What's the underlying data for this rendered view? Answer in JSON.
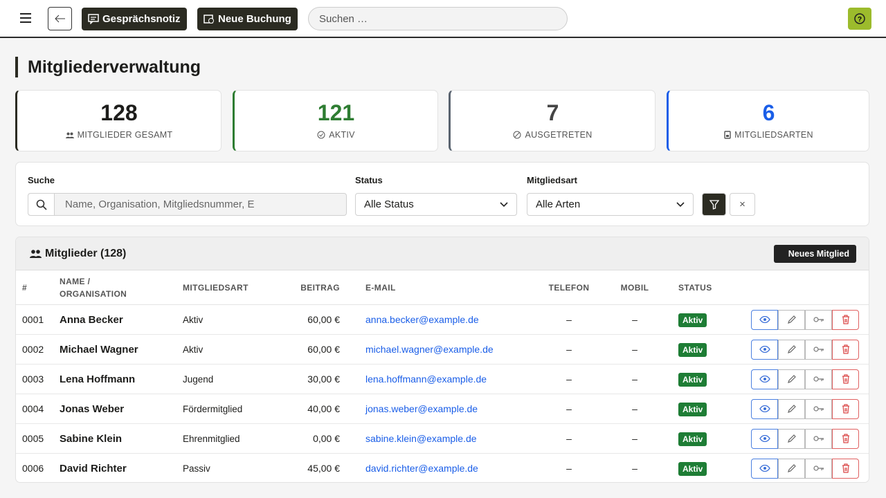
{
  "toolbar": {
    "note_button": "Gesprächsnotiz",
    "booking_button": "Neue Buchung",
    "search_placeholder": "Suchen …"
  },
  "header": {
    "title": "Mitgliederverwaltung"
  },
  "stats": [
    {
      "value": 128,
      "label": "MITGLIEDER GESAMT"
    },
    {
      "value": 121,
      "label": "AKTIV"
    },
    {
      "value": 7,
      "label": "AUSGETRETEN"
    },
    {
      "value": 6,
      "label": "MITGLIEDSARTEN"
    }
  ],
  "filters": {
    "search_label": "Suche",
    "search_placeholder": "Name, Organisation, Mitgliedsnummer, E",
    "status_label": "Status",
    "status_value": "Alle Status",
    "type_label": "Mitgliedsart",
    "type_value": "Alle Arten",
    "reset": "×"
  },
  "table": {
    "title": "Mitglieder (128)",
    "new_button": "Neues Mitglied",
    "columns": [
      "#",
      "NAME / ORGANISATION",
      "MITGLIEDSART",
      "BEITRAG",
      "E-MAIL",
      "TELEFON",
      "MOBIL",
      "STATUS"
    ],
    "rows": [
      [
        "0001",
        "Anna Becker",
        "Aktiv",
        "60,00 €",
        "anna.becker@example.de",
        "–",
        "–",
        "Aktiv"
      ],
      [
        "0002",
        "Michael Wagner",
        "Aktiv",
        "60,00 €",
        "michael.wagner@example.de",
        "–",
        "–",
        "Aktiv"
      ],
      [
        "0003",
        "Lena Hoffmann",
        "Jugend",
        "30,00 €",
        "lena.hoffmann@example.de",
        "–",
        "–",
        "Aktiv"
      ],
      [
        "0004",
        "Jonas Weber",
        "Fördermitglied",
        "40,00 €",
        "jonas.weber@example.de",
        "–",
        "–",
        "Aktiv"
      ],
      [
        "0005",
        "Sabine Klein",
        "Ehrenmitglied",
        "0,00 €",
        "sabine.klein@example.de",
        "–",
        "–",
        "Aktiv"
      ],
      [
        "0006",
        "David Richter",
        "Passiv",
        "45,00 €",
        "david.richter@example.de",
        "–",
        "–",
        "Aktiv"
      ]
    ]
  }
}
